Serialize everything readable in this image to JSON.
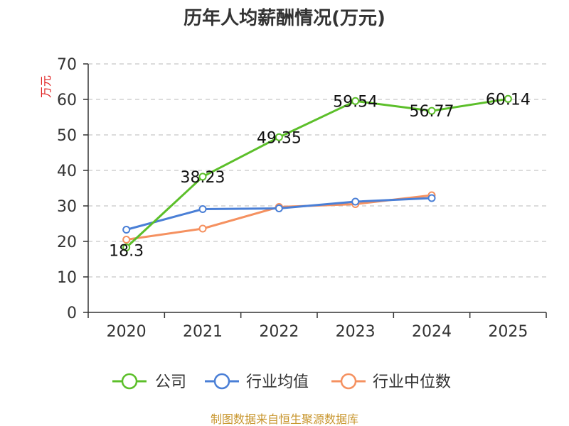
{
  "chart_data": {
    "type": "line",
    "title": "历年人均薪酬情况(万元)",
    "ylabel": "万元",
    "xlabel": "",
    "categories": [
      "2020",
      "2021",
      "2022",
      "2023",
      "2024",
      "2025"
    ],
    "ylim": [
      0,
      70
    ],
    "yticks": [
      0,
      10,
      20,
      30,
      40,
      50,
      60,
      70
    ],
    "grid": true,
    "legend_position": "bottom",
    "series": [
      {
        "name": "公司",
        "color": "#5cbf2a",
        "values": [
          18.3,
          38.23,
          49.35,
          59.54,
          56.77,
          60.14
        ],
        "labels": [
          "18.3",
          "38.23",
          "49.35",
          "59.54",
          "56.77",
          "60.14"
        ]
      },
      {
        "name": "行业均值",
        "color": "#4a7fd6",
        "values": [
          23.3,
          29.1,
          29.3,
          31.2,
          32.2,
          null
        ],
        "labels": []
      },
      {
        "name": "行业中位数",
        "color": "#f59160",
        "values": [
          20.5,
          23.6,
          29.7,
          30.5,
          33.0,
          null
        ],
        "labels": []
      }
    ]
  },
  "source": "制图数据来自恒生聚源数据库"
}
